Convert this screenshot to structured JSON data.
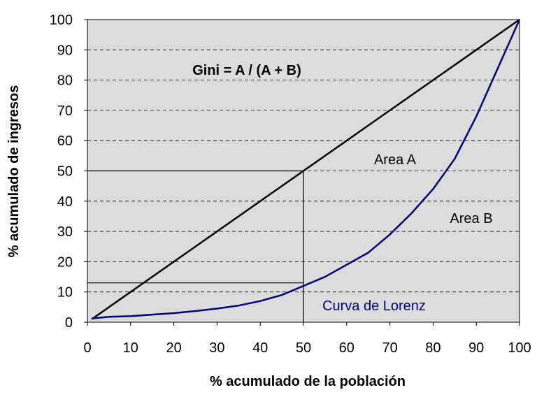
{
  "chart_data": {
    "type": "line",
    "annotation": "Gini = A / (A + B)",
    "area_labels": [
      "Area A",
      "Area B"
    ],
    "x_label": "% acumulado de la población",
    "y_label": "% acumulado de ingresos",
    "series": [
      {
        "color": "#000000",
        "x": [
          1,
          100
        ],
        "values": [
          1,
          100
        ]
      },
      {
        "name": "Curva de Lorenz",
        "color": "#000080",
        "x": [
          1,
          5,
          10,
          15,
          20,
          25,
          30,
          35,
          40,
          45,
          50,
          55,
          60,
          65,
          70,
          75,
          80,
          85,
          90,
          95,
          100
        ],
        "values": [
          1.2,
          1.8,
          2,
          2.5,
          3,
          3.7,
          4.5,
          5.5,
          7,
          9,
          12,
          15,
          19,
          23,
          29,
          36,
          44,
          54,
          68,
          84,
          100
        ]
      }
    ],
    "guide_lines": {
      "x": [
        50,
        50
      ],
      "y": [
        50,
        13
      ]
    },
    "xlim": [
      0,
      100
    ],
    "xticks": [
      0,
      10,
      20,
      30,
      40,
      50,
      60,
      70,
      80,
      90,
      100
    ],
    "ylim": [
      0,
      100
    ],
    "yticks": [
      0,
      10,
      20,
      30,
      40,
      50,
      60,
      70,
      80,
      90,
      100
    ],
    "grid": true,
    "background": "#dcdcdc"
  }
}
